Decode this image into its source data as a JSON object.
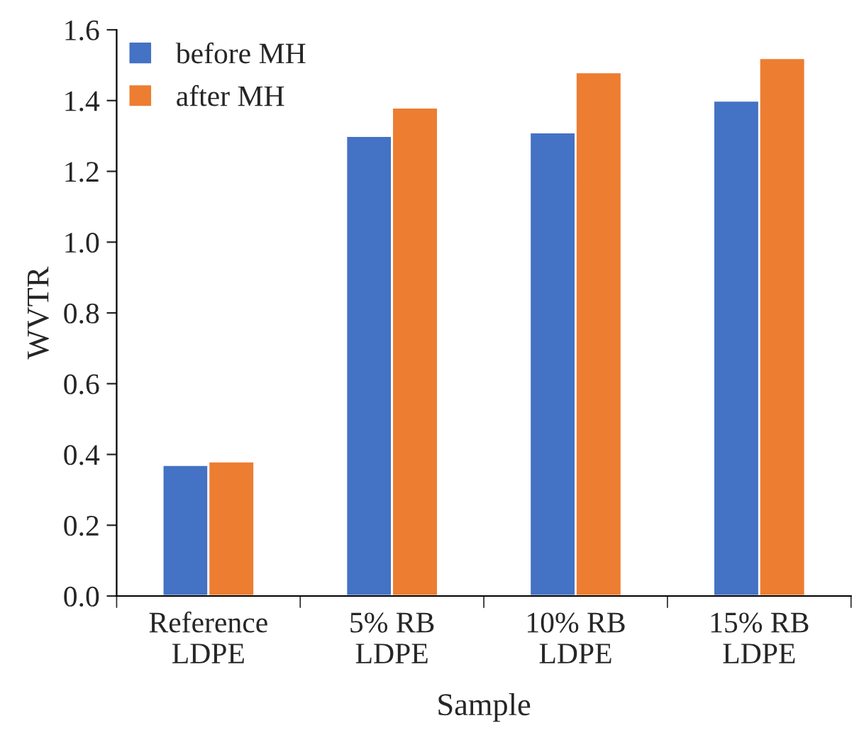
{
  "chart_data": {
    "type": "bar",
    "xlabel": "Sample",
    "ylabel": "WVTR",
    "categories": [
      "Reference\nLDPE",
      "5% RB\nLDPE",
      "10% RB\nLDPE",
      "15% RB\nLDPE"
    ],
    "series": [
      {
        "name": "before MH",
        "color": "#4472c4",
        "values": [
          0.37,
          1.3,
          1.31,
          1.4
        ]
      },
      {
        "name": "after MH",
        "color": "#ed7d31",
        "values": [
          0.38,
          1.38,
          1.48,
          1.52
        ]
      }
    ],
    "ylim": [
      0,
      1.6
    ],
    "yticks": [
      {
        "value": 0,
        "label": "0.0"
      },
      {
        "value": 0.2,
        "label": "0.2"
      },
      {
        "value": 0.4,
        "label": "0.4"
      },
      {
        "value": 0.6,
        "label": "0.6"
      },
      {
        "value": 0.8,
        "label": "0.8"
      },
      {
        "value": 1.0,
        "label": "1.0"
      },
      {
        "value": 1.2,
        "label": "1.2"
      },
      {
        "value": 1.4,
        "label": "1.4"
      },
      {
        "value": 1.6,
        "label": "1.6"
      }
    ],
    "grid": false,
    "legend": "top left"
  }
}
